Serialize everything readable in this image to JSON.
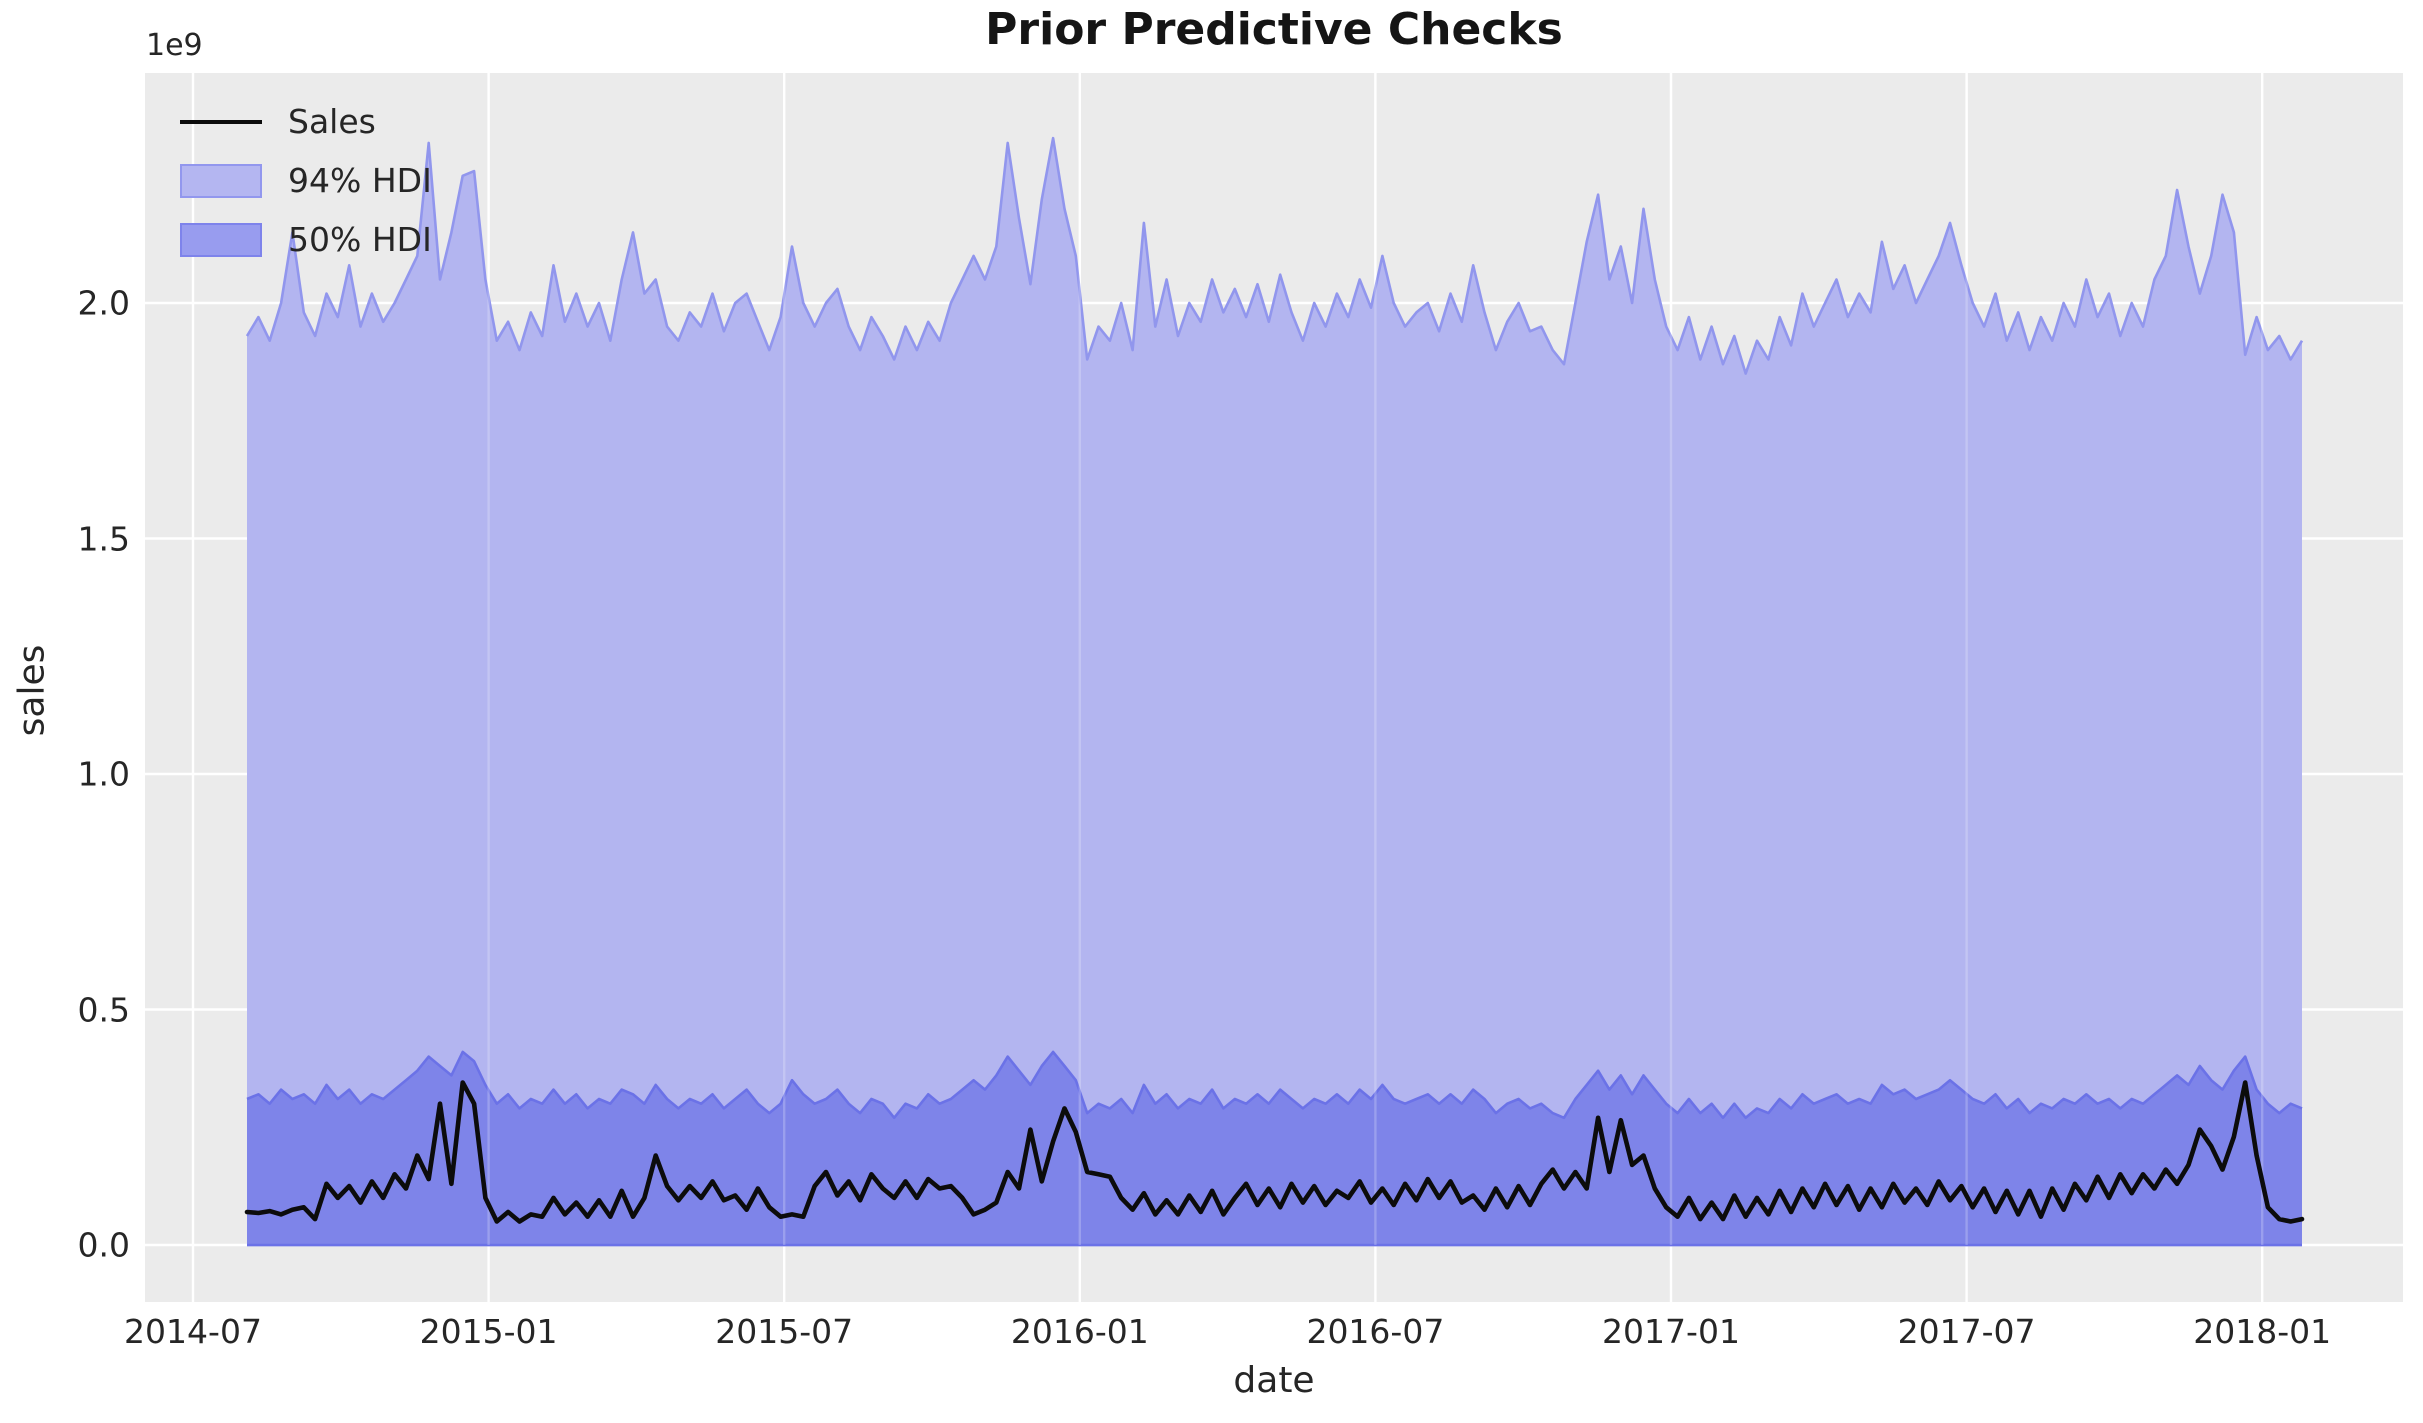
{
  "figure": {
    "title": "Prior Predictive Checks",
    "x_label": "date",
    "y_label": "sales",
    "offset_label": "1e9"
  },
  "legend": {
    "items": [
      {
        "label": "Sales",
        "type": "line"
      },
      {
        "label": "94% HDI",
        "type": "patch"
      },
      {
        "label": "50% HDI",
        "type": "patch"
      }
    ]
  },
  "colors": {
    "figure_bg": "#ffffff",
    "plot_bg": "#ebebeb",
    "grid": "#ffffff",
    "title_text": "#151515",
    "text": "#262626",
    "sales_line": "#0c0c0c",
    "hdi94_fill": "#b3b5f0",
    "hdi94_edge": "#9196ed",
    "hdi50_fill": "#7e84e9",
    "hdi50_edge": "#6b72e7",
    "legend94_fill": "#b4b6f1",
    "legend94_edge": "#9297ee",
    "legend50_fill": "#989cef",
    "legend50_edge": "#7e83eb"
  },
  "chart_data": {
    "type": "area",
    "title": "Prior Predictive Checks",
    "xlabel": "date",
    "ylabel": "sales",
    "y_offset_factor": "1e9",
    "grid": true,
    "legend_position": "upper left",
    "x_tick_labels": [
      "2014-07",
      "2015-01",
      "2015-07",
      "2016-01",
      "2016-07",
      "2017-01",
      "2017-07",
      "2018-01"
    ],
    "y_tick_labels": [
      "0.0",
      "0.5",
      "1.0",
      "1.5",
      "2.0"
    ],
    "y_tick_values": [
      0.0,
      0.5,
      1.0,
      1.5,
      2.0
    ],
    "ylim": [
      -0.12,
      2.49
    ],
    "x_start": "2014-08-03",
    "x_end": "2018-01-21",
    "frequency": "weekly",
    "n_points": 182,
    "series": [
      {
        "name": "Sales",
        "type": "line",
        "unit": "1e9",
        "values": [
          0.07,
          0.068,
          0.072,
          0.065,
          0.075,
          0.08,
          0.055,
          0.13,
          0.1,
          0.125,
          0.09,
          0.135,
          0.1,
          0.15,
          0.12,
          0.19,
          0.14,
          0.3,
          0.13,
          0.345,
          0.3,
          0.1,
          0.05,
          0.07,
          0.05,
          0.065,
          0.06,
          0.1,
          0.065,
          0.09,
          0.06,
          0.095,
          0.06,
          0.115,
          0.06,
          0.1,
          0.19,
          0.125,
          0.095,
          0.125,
          0.1,
          0.135,
          0.095,
          0.105,
          0.075,
          0.12,
          0.08,
          0.06,
          0.065,
          0.06,
          0.125,
          0.155,
          0.105,
          0.135,
          0.095,
          0.15,
          0.12,
          0.1,
          0.135,
          0.1,
          0.14,
          0.12,
          0.125,
          0.1,
          0.065,
          0.075,
          0.09,
          0.155,
          0.12,
          0.245,
          0.135,
          0.22,
          0.29,
          0.24,
          0.155,
          0.15,
          0.145,
          0.1,
          0.075,
          0.11,
          0.065,
          0.095,
          0.065,
          0.105,
          0.07,
          0.115,
          0.065,
          0.1,
          0.13,
          0.085,
          0.12,
          0.08,
          0.13,
          0.09,
          0.125,
          0.085,
          0.115,
          0.1,
          0.135,
          0.09,
          0.12,
          0.085,
          0.13,
          0.095,
          0.14,
          0.1,
          0.135,
          0.09,
          0.105,
          0.075,
          0.12,
          0.08,
          0.125,
          0.085,
          0.13,
          0.16,
          0.12,
          0.155,
          0.12,
          0.27,
          0.155,
          0.265,
          0.17,
          0.19,
          0.12,
          0.08,
          0.06,
          0.1,
          0.055,
          0.09,
          0.055,
          0.105,
          0.06,
          0.1,
          0.065,
          0.115,
          0.07,
          0.12,
          0.08,
          0.13,
          0.085,
          0.125,
          0.075,
          0.12,
          0.08,
          0.13,
          0.09,
          0.12,
          0.085,
          0.135,
          0.095,
          0.125,
          0.08,
          0.12,
          0.07,
          0.115,
          0.065,
          0.115,
          0.06,
          0.12,
          0.075,
          0.13,
          0.095,
          0.145,
          0.1,
          0.15,
          0.11,
          0.15,
          0.12,
          0.16,
          0.13,
          0.17,
          0.245,
          0.21,
          0.16,
          0.23,
          0.345,
          0.19,
          0.08,
          0.055,
          0.05,
          0.055
        ]
      },
      {
        "name": "94% HDI",
        "type": "band",
        "unit": "1e9",
        "lower": 0.0,
        "upper": [
          1.93,
          1.97,
          1.92,
          2.0,
          2.15,
          1.98,
          1.93,
          2.02,
          1.97,
          2.08,
          1.95,
          2.02,
          1.96,
          2.0,
          2.05,
          2.1,
          2.34,
          2.05,
          2.15,
          2.27,
          2.28,
          2.05,
          1.92,
          1.96,
          1.9,
          1.98,
          1.93,
          2.08,
          1.96,
          2.02,
          1.95,
          2.0,
          1.92,
          2.05,
          2.15,
          2.02,
          2.05,
          1.95,
          1.92,
          1.98,
          1.95,
          2.02,
          1.94,
          2.0,
          2.02,
          1.96,
          1.9,
          1.97,
          2.12,
          2.0,
          1.95,
          2.0,
          2.03,
          1.95,
          1.9,
          1.97,
          1.93,
          1.88,
          1.95,
          1.9,
          1.96,
          1.92,
          2.0,
          2.05,
          2.1,
          2.05,
          2.12,
          2.34,
          2.18,
          2.04,
          2.22,
          2.35,
          2.2,
          2.1,
          1.88,
          1.95,
          1.92,
          2.0,
          1.9,
          2.17,
          1.95,
          2.05,
          1.93,
          2.0,
          1.96,
          2.05,
          1.98,
          2.03,
          1.97,
          2.04,
          1.96,
          2.06,
          1.98,
          1.92,
          2.0,
          1.95,
          2.02,
          1.97,
          2.05,
          1.99,
          2.1,
          2.0,
          1.95,
          1.98,
          2.0,
          1.94,
          2.02,
          1.96,
          2.08,
          1.98,
          1.9,
          1.96,
          2.0,
          1.94,
          1.95,
          1.9,
          1.87,
          2.0,
          2.13,
          2.23,
          2.05,
          2.12,
          2.0,
          2.2,
          2.05,
          1.95,
          1.9,
          1.97,
          1.88,
          1.95,
          1.87,
          1.93,
          1.85,
          1.92,
          1.88,
          1.97,
          1.91,
          2.02,
          1.95,
          2.0,
          2.05,
          1.97,
          2.02,
          1.98,
          2.13,
          2.03,
          2.08,
          2.0,
          2.05,
          2.1,
          2.17,
          2.08,
          2.0,
          1.95,
          2.02,
          1.92,
          1.98,
          1.9,
          1.97,
          1.92,
          2.0,
          1.95,
          2.05,
          1.97,
          2.02,
          1.93,
          2.0,
          1.95,
          2.05,
          2.1,
          2.24,
          2.12,
          2.02,
          2.1,
          2.23,
          2.15,
          1.89,
          1.97,
          1.9,
          1.93,
          1.88,
          1.92
        ]
      },
      {
        "name": "50% HDI",
        "type": "band",
        "unit": "1e9",
        "lower": 0.0,
        "upper": [
          0.31,
          0.32,
          0.3,
          0.33,
          0.31,
          0.32,
          0.3,
          0.34,
          0.31,
          0.33,
          0.3,
          0.32,
          0.31,
          0.33,
          0.35,
          0.37,
          0.4,
          0.38,
          0.36,
          0.41,
          0.39,
          0.34,
          0.3,
          0.32,
          0.29,
          0.31,
          0.3,
          0.33,
          0.3,
          0.32,
          0.29,
          0.31,
          0.3,
          0.33,
          0.32,
          0.3,
          0.34,
          0.31,
          0.29,
          0.31,
          0.3,
          0.32,
          0.29,
          0.31,
          0.33,
          0.3,
          0.28,
          0.3,
          0.35,
          0.32,
          0.3,
          0.31,
          0.33,
          0.3,
          0.28,
          0.31,
          0.3,
          0.27,
          0.3,
          0.29,
          0.32,
          0.3,
          0.31,
          0.33,
          0.35,
          0.33,
          0.36,
          0.4,
          0.37,
          0.34,
          0.38,
          0.41,
          0.38,
          0.35,
          0.28,
          0.3,
          0.29,
          0.31,
          0.28,
          0.34,
          0.3,
          0.32,
          0.29,
          0.31,
          0.3,
          0.33,
          0.29,
          0.31,
          0.3,
          0.32,
          0.3,
          0.33,
          0.31,
          0.29,
          0.31,
          0.3,
          0.32,
          0.3,
          0.33,
          0.31,
          0.34,
          0.31,
          0.3,
          0.31,
          0.32,
          0.3,
          0.32,
          0.3,
          0.33,
          0.31,
          0.28,
          0.3,
          0.31,
          0.29,
          0.3,
          0.28,
          0.27,
          0.31,
          0.34,
          0.37,
          0.33,
          0.36,
          0.32,
          0.36,
          0.33,
          0.3,
          0.28,
          0.31,
          0.28,
          0.3,
          0.27,
          0.3,
          0.27,
          0.29,
          0.28,
          0.31,
          0.29,
          0.32,
          0.3,
          0.31,
          0.32,
          0.3,
          0.31,
          0.3,
          0.34,
          0.32,
          0.33,
          0.31,
          0.32,
          0.33,
          0.35,
          0.33,
          0.31,
          0.3,
          0.32,
          0.29,
          0.31,
          0.28,
          0.3,
          0.29,
          0.31,
          0.3,
          0.32,
          0.3,
          0.31,
          0.29,
          0.31,
          0.3,
          0.32,
          0.34,
          0.36,
          0.34,
          0.38,
          0.35,
          0.33,
          0.37,
          0.4,
          0.33,
          0.3,
          0.28,
          0.3,
          0.29
        ]
      }
    ]
  }
}
